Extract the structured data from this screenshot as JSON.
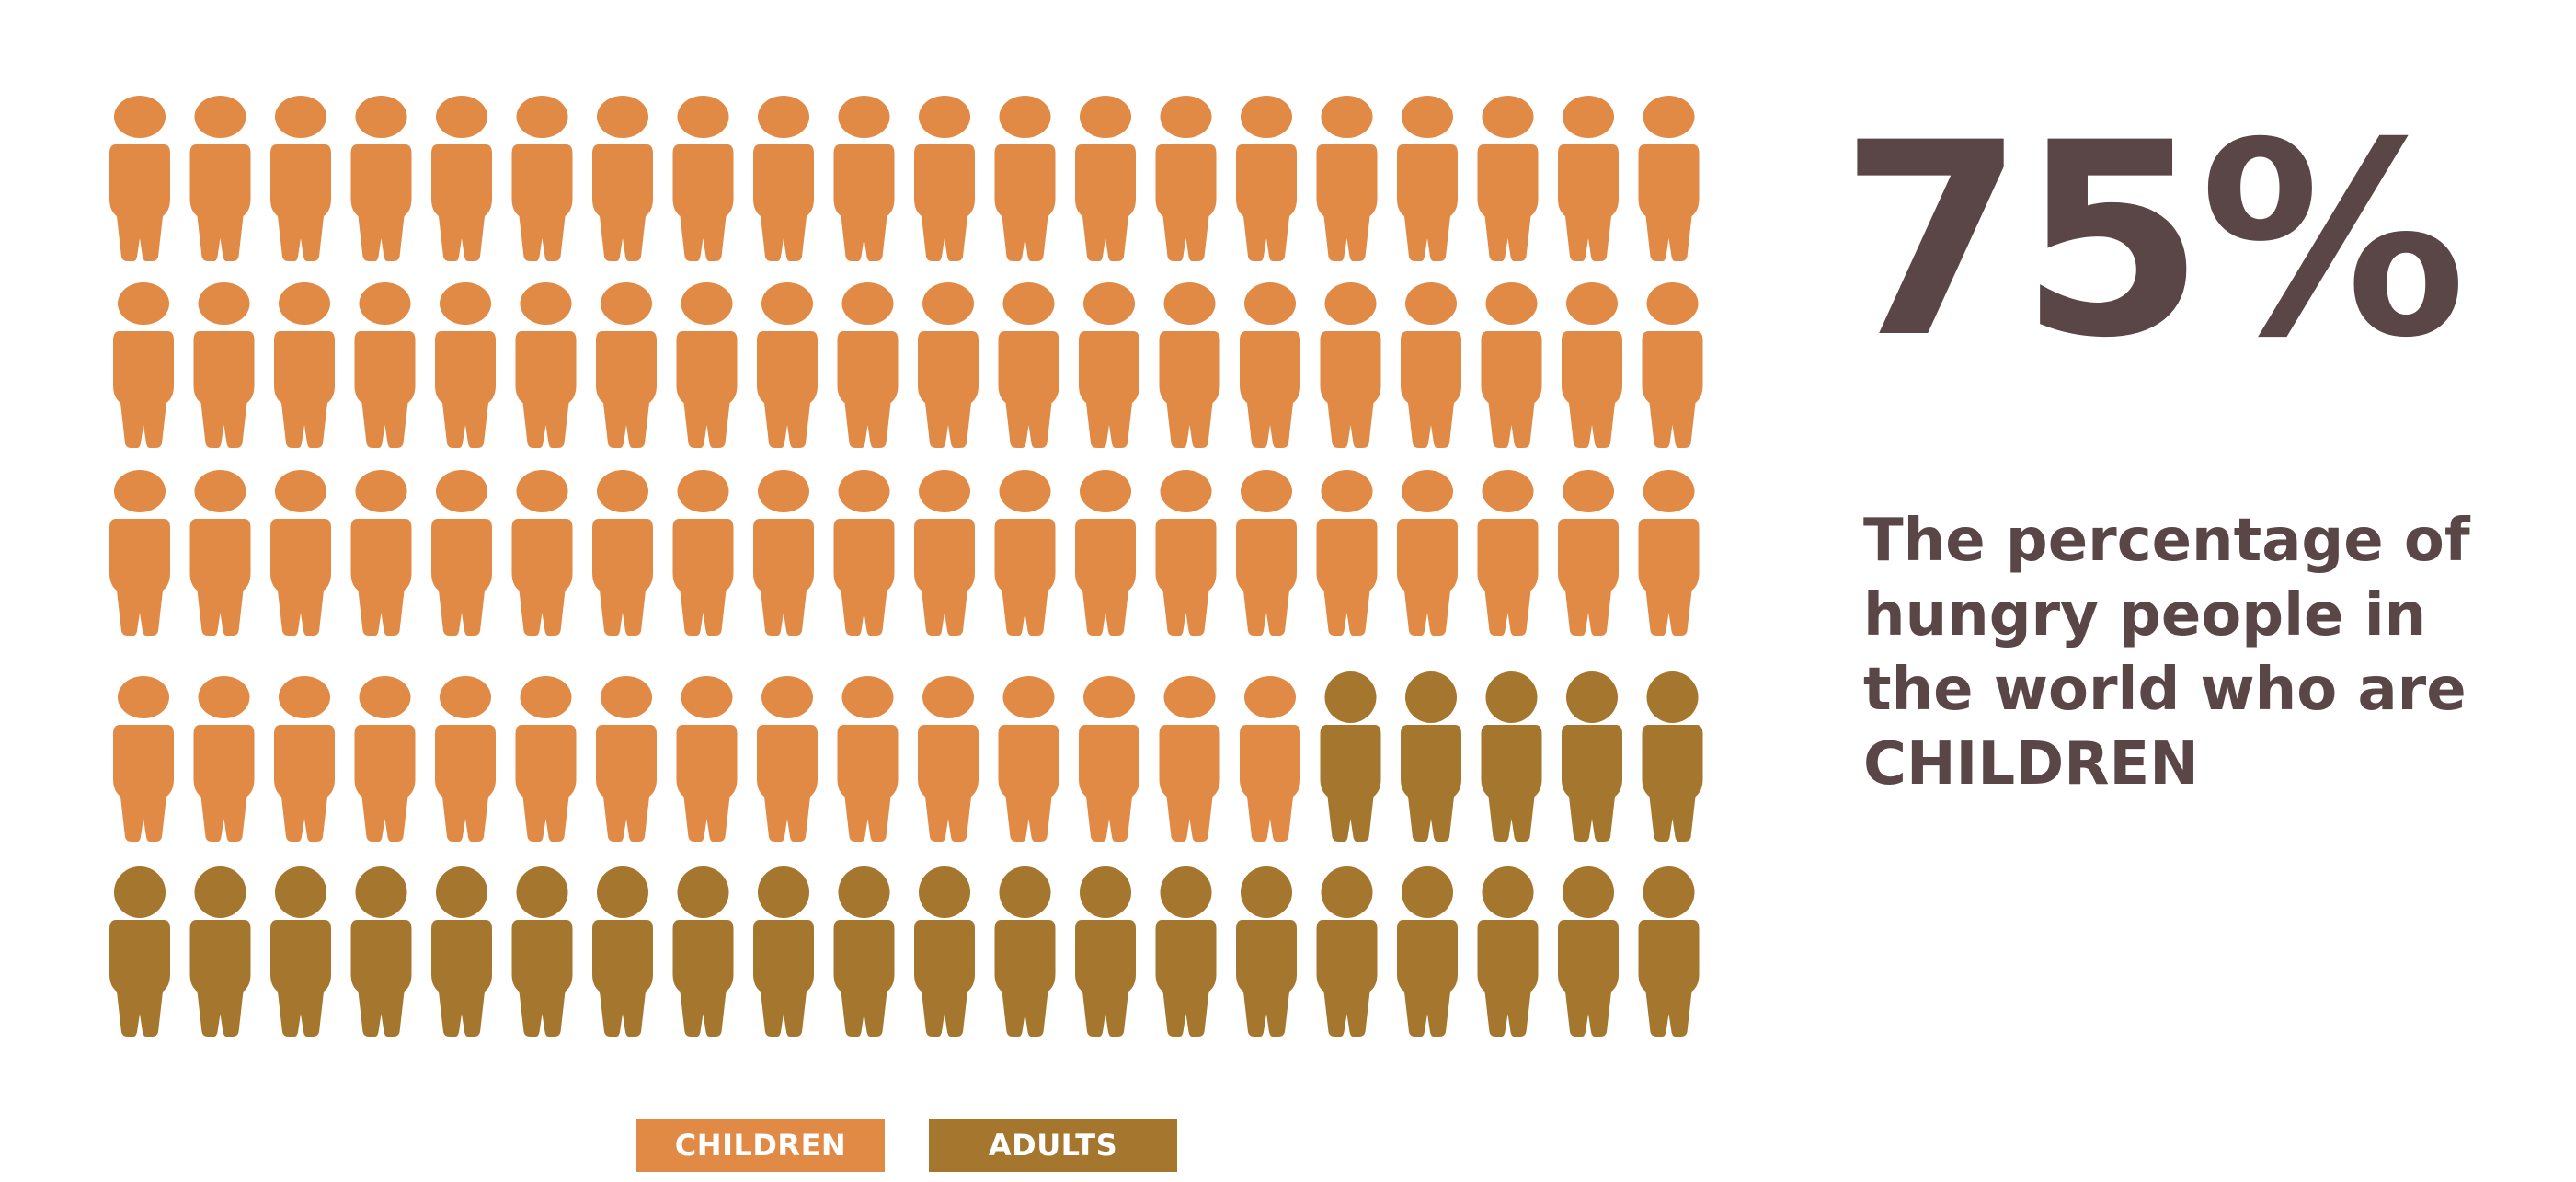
{
  "chart_data": {
    "type": "pictogram",
    "title": "75%",
    "description_lines": [
      "The percentage of",
      "hungry people in",
      "the world who are",
      "CHILDREN"
    ],
    "categories": [
      "CHILDREN",
      "ADULTS"
    ],
    "values": [
      75,
      25
    ],
    "total_icons": 100,
    "rows": 5,
    "columns": 20,
    "colors": {
      "children": "#e08a45",
      "adults": "#a5762d",
      "text": "#5a4646"
    },
    "legend": [
      {
        "label": "CHILDREN",
        "color": "#e08a45"
      },
      {
        "label": "ADULTS",
        "color": "#a5762d"
      }
    ]
  }
}
